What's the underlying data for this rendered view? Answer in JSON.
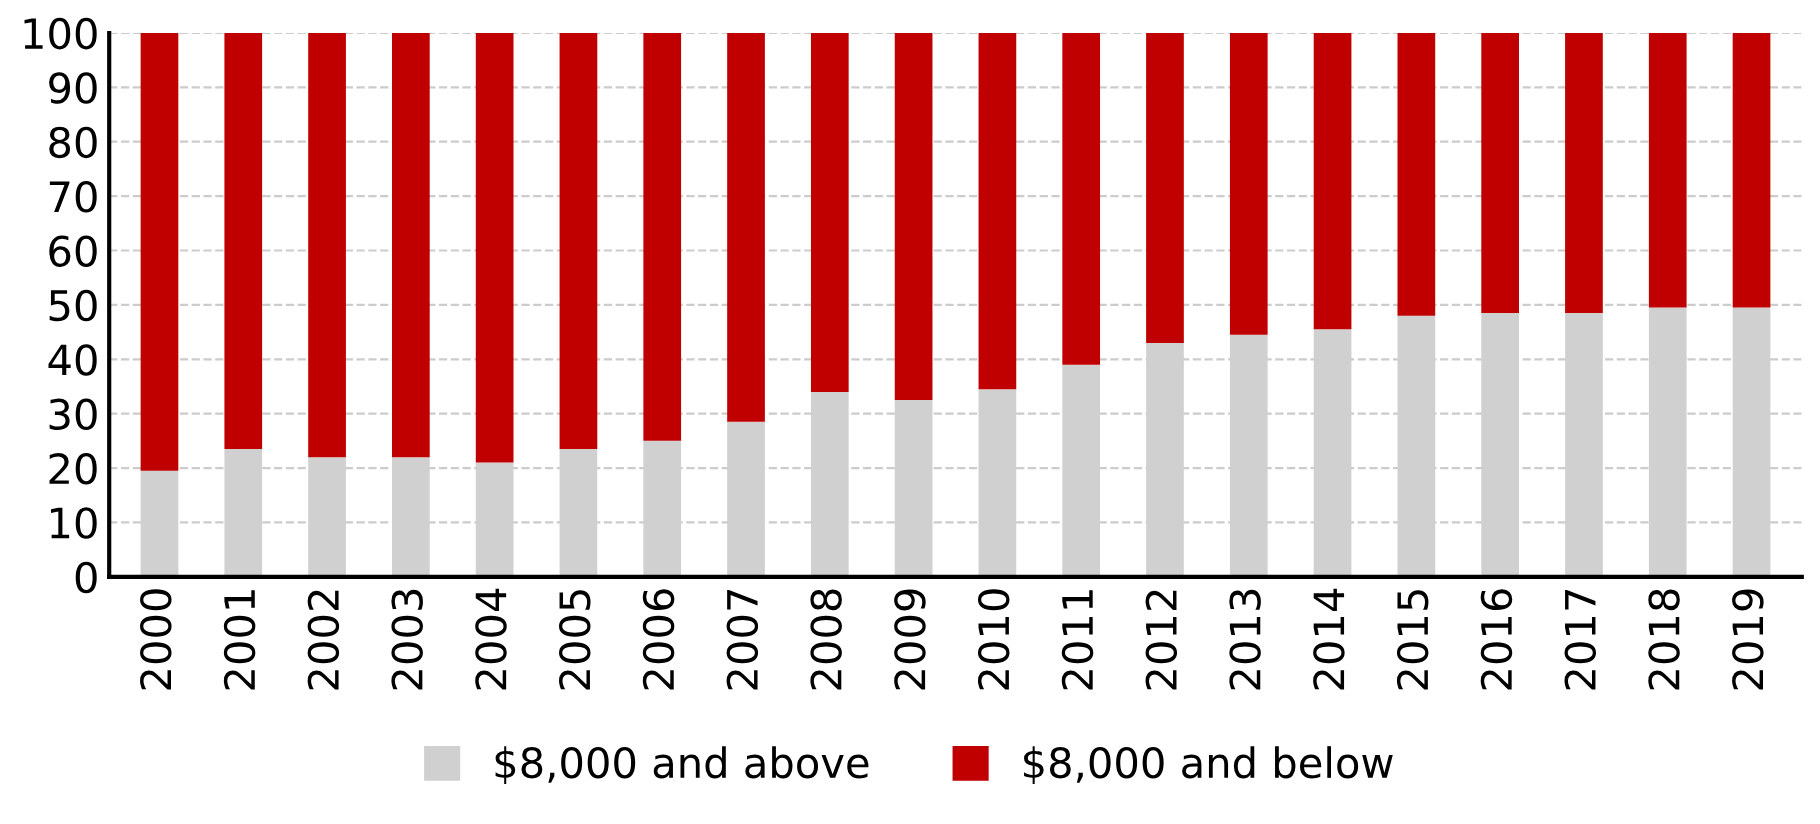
{
  "chart_data": {
    "type": "bar",
    "stacked": true,
    "categories": [
      "2000",
      "2001",
      "2002",
      "2003",
      "2004",
      "2005",
      "2006",
      "2007",
      "2008",
      "2009",
      "2010",
      "2011",
      "2012",
      "2013",
      "2014",
      "2015",
      "2016",
      "2017",
      "2018",
      "2019"
    ],
    "series": [
      {
        "name": "$8,000 and above",
        "color": "#d0d0d0",
        "values": [
          19.5,
          23.5,
          22,
          22,
          21,
          23.5,
          25,
          28.5,
          34,
          32.5,
          34.5,
          39,
          43,
          44.5,
          45.5,
          48,
          48.5,
          48.5,
          49.5,
          49.5
        ]
      },
      {
        "name": "$8,000 and below",
        "color": "#c00000",
        "values": [
          80.5,
          76.5,
          78,
          78,
          79,
          76.5,
          75,
          71.5,
          66,
          67.5,
          65.5,
          61,
          57,
          55.5,
          54.5,
          52,
          51.5,
          51.5,
          50.5,
          50.5
        ]
      }
    ],
    "ylim": [
      0,
      100
    ],
    "yticks": [
      0,
      10,
      20,
      30,
      40,
      50,
      60,
      70,
      80,
      90,
      100
    ],
    "grid": "y",
    "legend": "bottom"
  }
}
